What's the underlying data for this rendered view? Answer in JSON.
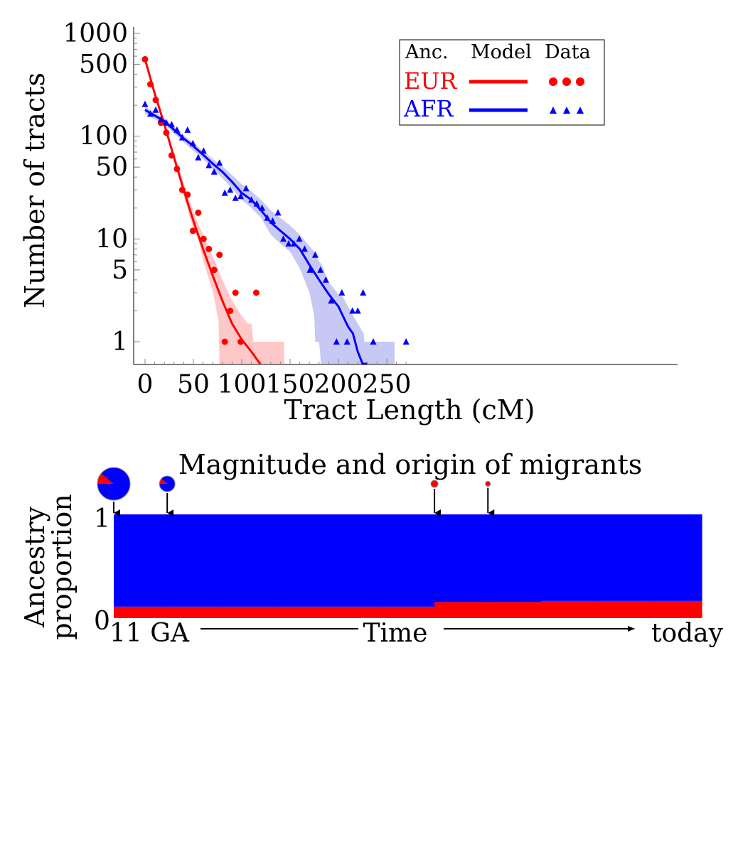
{
  "chart_data": [
    {
      "type": "scatter",
      "xlabel": "Tract Length (cM)",
      "ylabel": "Number of  tracts",
      "y_scale": "log",
      "xlim": [
        -5,
        280
      ],
      "ylim": [
        0.8,
        1000
      ],
      "x_ticks": [
        "0",
        "50",
        "100",
        "150",
        "200",
        "250"
      ],
      "y_ticks": [
        "1000",
        "500",
        "100",
        "50",
        "10",
        "5",
        "1"
      ],
      "legend": {
        "position": "top-right",
        "header": [
          "Anc.",
          "Model",
          "Data"
        ],
        "entries": [
          {
            "label": "EUR",
            "color": "#ff0000",
            "data_marker": "circle"
          },
          {
            "label": "AFR",
            "color": "#0000ff",
            "data_marker": "triangle"
          }
        ]
      },
      "series": [
        {
          "name": "EUR",
          "color": "#ff0000",
          "band_color": "#ffc8c8",
          "data_points": [
            [
              0,
              560
            ],
            [
              5.5,
              320
            ],
            [
              11,
              225
            ],
            [
              16.5,
              135
            ],
            [
              22,
              108
            ],
            [
              27.5,
              65
            ],
            [
              33,
              48
            ],
            [
              38.5,
              30
            ],
            [
              44,
              27
            ],
            [
              49.5,
              12
            ],
            [
              55,
              18
            ],
            [
              60.5,
              10
            ],
            [
              66,
              8
            ],
            [
              71.5,
              5
            ],
            [
              77,
              7
            ],
            [
              82.5,
              1
            ],
            [
              88,
              2
            ],
            [
              93.5,
              3
            ],
            [
              99,
              1
            ],
            [
              115,
              3
            ]
          ],
          "model": [
            [
              0,
              560
            ],
            [
              10,
              260
            ],
            [
              20,
              130
            ],
            [
              30,
              62
            ],
            [
              40,
              30
            ],
            [
              50,
              15
            ],
            [
              60,
              8
            ],
            [
              70,
              4.4
            ],
            [
              80,
              2.5
            ],
            [
              90,
              1.5
            ],
            [
              100,
              1.05
            ],
            [
              110,
              0.8
            ],
            [
              119,
              0.6
            ]
          ],
          "band": [
            [
              0,
              580,
              540
            ],
            [
              10,
              270,
              250
            ],
            [
              20,
              135,
              125
            ],
            [
              30,
              68,
              58
            ],
            [
              40,
              35,
              26
            ],
            [
              50,
              18.5,
              12.5
            ],
            [
              55,
              14,
              10
            ],
            [
              60,
              11,
              6.2
            ],
            [
              70,
              6.8,
              3.1
            ],
            [
              76,
              5,
              1.6
            ],
            [
              77,
              4.6,
              0.5
            ],
            [
              80,
              4,
              0.5
            ],
            [
              90,
              2.5,
              0.5
            ],
            [
              100,
              1.8,
              0.5
            ],
            [
              106,
              1.5,
              0.5
            ],
            [
              110,
              1.5,
              0.5
            ],
            [
              112,
              1,
              0.5
            ],
            [
              144,
              1,
              0.5
            ]
          ]
        },
        {
          "name": "AFR",
          "color": "#0000ff",
          "band_color": "#c8c8f4",
          "data_points": [
            [
              0,
              205
            ],
            [
              5.5,
              165
            ],
            [
              11,
              180
            ],
            [
              16.5,
              145
            ],
            [
              22,
              135
            ],
            [
              27.5,
              130
            ],
            [
              33,
              115
            ],
            [
              38.5,
              97
            ],
            [
              44,
              115
            ],
            [
              49.5,
              85
            ],
            [
              55,
              62
            ],
            [
              60.5,
              72
            ],
            [
              66,
              52
            ],
            [
              71.5,
              45
            ],
            [
              77,
              55
            ],
            [
              82.5,
              28
            ],
            [
              88,
              30
            ],
            [
              93.5,
              25
            ],
            [
              99,
              26
            ],
            [
              104.5,
              31
            ],
            [
              110,
              24
            ],
            [
              115.5,
              22
            ],
            [
              121,
              20
            ],
            [
              126.5,
              16
            ],
            [
              132,
              15
            ],
            [
              137.5,
              18
            ],
            [
              143,
              10
            ],
            [
              148.5,
              9
            ],
            [
              154,
              9
            ],
            [
              159.5,
              10
            ],
            [
              165,
              8
            ],
            [
              170.5,
              5
            ],
            [
              176,
              7
            ],
            [
              181.5,
              5
            ],
            [
              187,
              4
            ],
            [
              192.5,
              2.5
            ],
            [
              198,
              1
            ],
            [
              203.5,
              3
            ],
            [
              209,
              1
            ],
            [
              214.5,
              2
            ],
            [
              220,
              2
            ],
            [
              225.5,
              3
            ],
            [
              236,
              1
            ],
            [
              270,
              1
            ]
          ],
          "model": [
            [
              0,
              180
            ],
            [
              20,
              140
            ],
            [
              40,
              95
            ],
            [
              50,
              80
            ],
            [
              60,
              66
            ],
            [
              70,
              54
            ],
            [
              80,
              45
            ],
            [
              90,
              36
            ],
            [
              100,
              28
            ],
            [
              110,
              24
            ],
            [
              120,
              19
            ],
            [
              130,
              14.5
            ],
            [
              140,
              12
            ],
            [
              150,
              10
            ],
            [
              160,
              8
            ],
            [
              170,
              5.6
            ],
            [
              180,
              4
            ],
            [
              190,
              2.9
            ],
            [
              200,
              2.2
            ],
            [
              210,
              1.4
            ],
            [
              215,
              1.2
            ],
            [
              220,
              0.8
            ],
            [
              225,
              0.6
            ],
            [
              230,
              0.55
            ]
          ],
          "band": [
            [
              0,
              195,
              165
            ],
            [
              20,
              150,
              130
            ],
            [
              40,
              102,
              87
            ],
            [
              50,
              86,
              72
            ],
            [
              60,
              72,
              60
            ],
            [
              70,
              60,
              48
            ],
            [
              80,
              51,
              39
            ],
            [
              90,
              42,
              31
            ],
            [
              100,
              34,
              24
            ],
            [
              110,
              29,
              20
            ],
            [
              120,
              24,
              16
            ],
            [
              130,
              19,
              11
            ],
            [
              140,
              16,
              9
            ],
            [
              150,
              13.5,
              7.5
            ],
            [
              160,
              11,
              5.2
            ],
            [
              170,
              8.5,
              3
            ],
            [
              175,
              7.5,
              1.8
            ],
            [
              176,
              7.2,
              1
            ],
            [
              180,
              6,
              1
            ],
            [
              182,
              5.8,
              0.5
            ],
            [
              190,
              3.8,
              0.5
            ],
            [
              200,
              2.9,
              0.5
            ],
            [
              205,
              2.7,
              0.5
            ],
            [
              210,
              2.2,
              0.5
            ],
            [
              215,
              1.8,
              0.5
            ],
            [
              220,
              1.5,
              0.5
            ],
            [
              226,
              1.2,
              0.5
            ],
            [
              227,
              1,
              0.5
            ],
            [
              258,
              1,
              0.5
            ]
          ]
        }
      ]
    },
    {
      "type": "area",
      "title": "Magnitude and origin of migrants",
      "ylabel": "Ancestry\nproportion",
      "y_ticks": [
        "1",
        "0"
      ],
      "x_start_label": "11 GA",
      "x_mid_label": "Time",
      "x_end_label": "today",
      "generations": 11,
      "eur_proportion": [
        0.11,
        0.11,
        0.11,
        0.11,
        0.11,
        0.11,
        0.155,
        0.155,
        0.165,
        0.165,
        0.165
      ],
      "migrations": [
        {
          "generation": 0,
          "size": "large",
          "eur_fraction": 0.11,
          "afr_fraction": 0.89
        },
        {
          "generation": 1,
          "size": "medium",
          "eur_fraction": 0.12,
          "afr_fraction": 0.88
        },
        {
          "generation": 6,
          "size": "small",
          "eur_fraction": 1,
          "afr_fraction": 0
        },
        {
          "generation": 7,
          "size": "tiny",
          "eur_fraction": 1,
          "afr_fraction": 0
        }
      ],
      "colors": {
        "EUR": "#ff0000",
        "AFR": "#0000ff"
      }
    }
  ]
}
